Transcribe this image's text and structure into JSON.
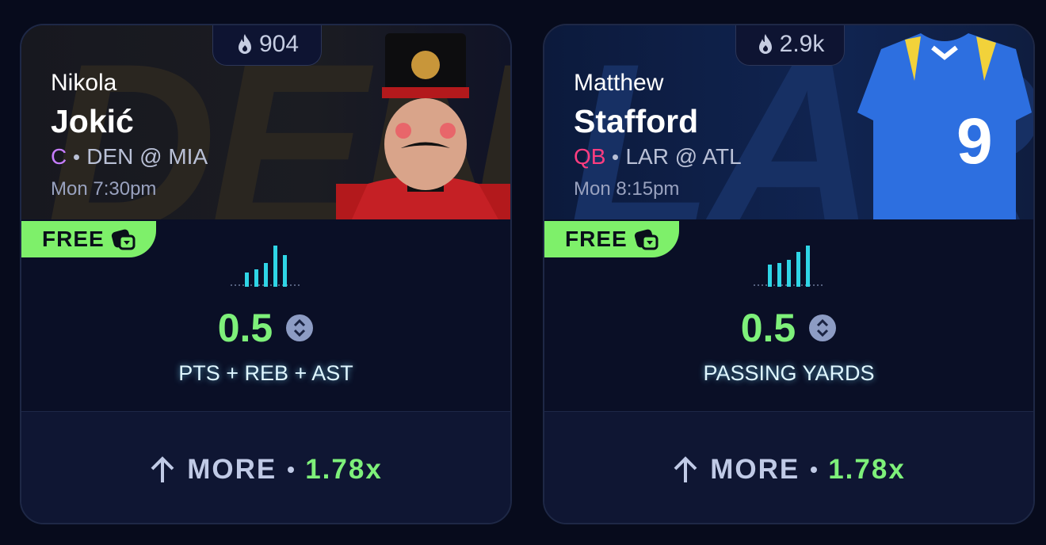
{
  "cards": [
    {
      "team_watermark": "DEN",
      "popularity": "904",
      "first_name": "Nikola",
      "last_name": "Jokić",
      "position": "C",
      "position_color": "#c77dff",
      "matchup": "DEN @ MIA",
      "time": "Mon 7:30pm",
      "badge": "FREE",
      "line": "0.5",
      "stat": "PTS + REB + AST",
      "pick": "MORE",
      "multiplier": "1.78x",
      "image": "nutcracker"
    },
    {
      "team_watermark": "LAR",
      "popularity": "2.9k",
      "first_name": "Matthew",
      "last_name": "Stafford",
      "position": "QB",
      "position_color": "#ff3d80",
      "matchup": "LAR @ ATL",
      "time": "Mon 8:15pm",
      "badge": "FREE",
      "line": "0.5",
      "stat": "PASSING YARDS",
      "pick": "MORE",
      "multiplier": "1.78x",
      "image": "jersey",
      "jersey_number": "9"
    }
  ]
}
